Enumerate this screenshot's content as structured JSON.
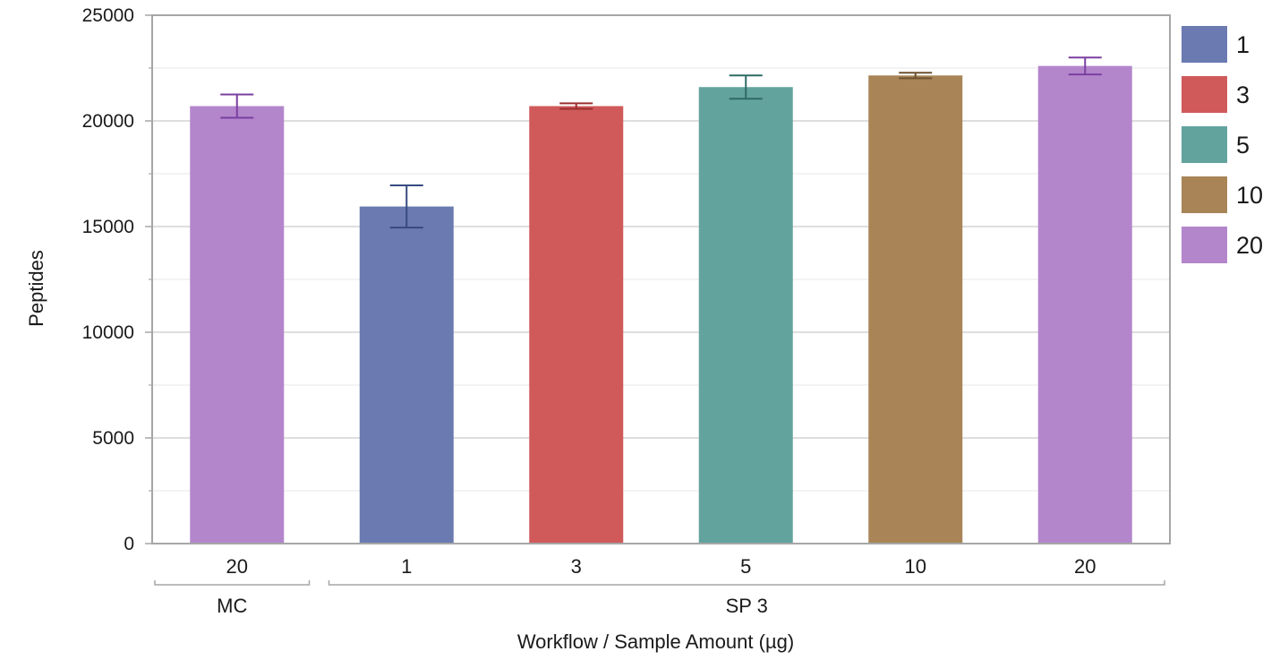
{
  "chart_data": {
    "type": "bar",
    "xlabel": "Workflow / Sample Amount (µg)",
    "ylabel": "Peptides",
    "ylim": [
      0,
      25000
    ],
    "yticks": [
      "0",
      "5000",
      "10000",
      "15000",
      "20000",
      "25000"
    ],
    "grid": true,
    "legend_position": "right",
    "groups": [
      {
        "label": "MC",
        "categories": [
          "20"
        ]
      },
      {
        "label": "SP 3",
        "categories": [
          "1",
          "3",
          "5",
          "10",
          "20"
        ]
      }
    ],
    "bars": [
      {
        "group": "MC",
        "category": "20",
        "value": 20700,
        "error": 550,
        "color": "#b386cc",
        "error_color": "#7a3fa0"
      },
      {
        "group": "SP 3",
        "category": "1",
        "value": 15950,
        "error": 1000,
        "color": "#6b7bb1",
        "error_color": "#364a80"
      },
      {
        "group": "SP 3",
        "category": "3",
        "value": 20700,
        "error": 130,
        "color": "#d05a5a",
        "error_color": "#9a2e2e"
      },
      {
        "group": "SP 3",
        "category": "5",
        "value": 21600,
        "error": 550,
        "color": "#63a39e",
        "error_color": "#2f6a64"
      },
      {
        "group": "SP 3",
        "category": "10",
        "value": 22150,
        "error": 130,
        "color": "#a88457",
        "error_color": "#6e5230"
      },
      {
        "group": "SP 3",
        "category": "20",
        "value": 22600,
        "error": 400,
        "color": "#b386cc",
        "error_color": "#7a3fa0"
      }
    ],
    "legend": [
      {
        "label": "1",
        "color": "#6b7bb1"
      },
      {
        "label": "3",
        "color": "#d05a5a"
      },
      {
        "label": "5",
        "color": "#63a39e"
      },
      {
        "label": "10",
        "color": "#a88457"
      },
      {
        "label": "20",
        "color": "#b386cc"
      }
    ]
  }
}
